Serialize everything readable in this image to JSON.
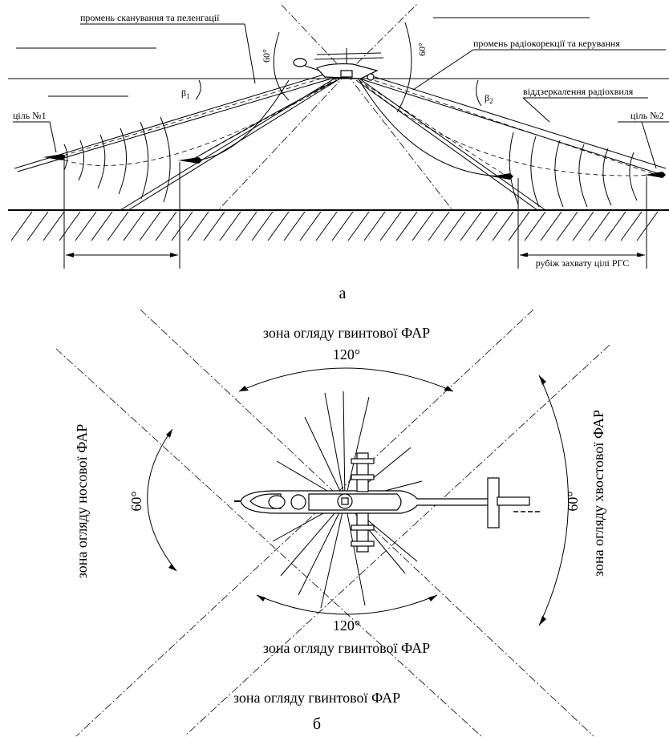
{
  "top": {
    "label_scan_beam": "промень сканування та пеленгації",
    "label_correction_beam": "промень радіокорекції та керування",
    "label_reflected_wave": "віддзеркалення радіохвиля",
    "label_target1": "ціль №1",
    "label_target2": "ціль №2",
    "label_capture_line": "рубіж захвату цілі РГС",
    "angle_left": "60°",
    "angle_right": "60°",
    "beta1": "β",
    "beta1_sub": "1",
    "beta2": "β",
    "beta2_sub": "2",
    "caption": "а"
  },
  "bottom": {
    "zone_rotor_top": "зона огляду гвинтової ФАР",
    "angle_top": "120°",
    "zone_nose": "зона огляду носової ФАР",
    "angle_left": "60°",
    "zone_tail": "зона огляду хвостової ФАР",
    "angle_right": "60°",
    "angle_bottom": "120°",
    "zone_rotor_bottom": "зона огляду гвинтової ФАР",
    "zone_rotor_footer": "зона огляду гвинтової ФАР",
    "caption": "б"
  }
}
